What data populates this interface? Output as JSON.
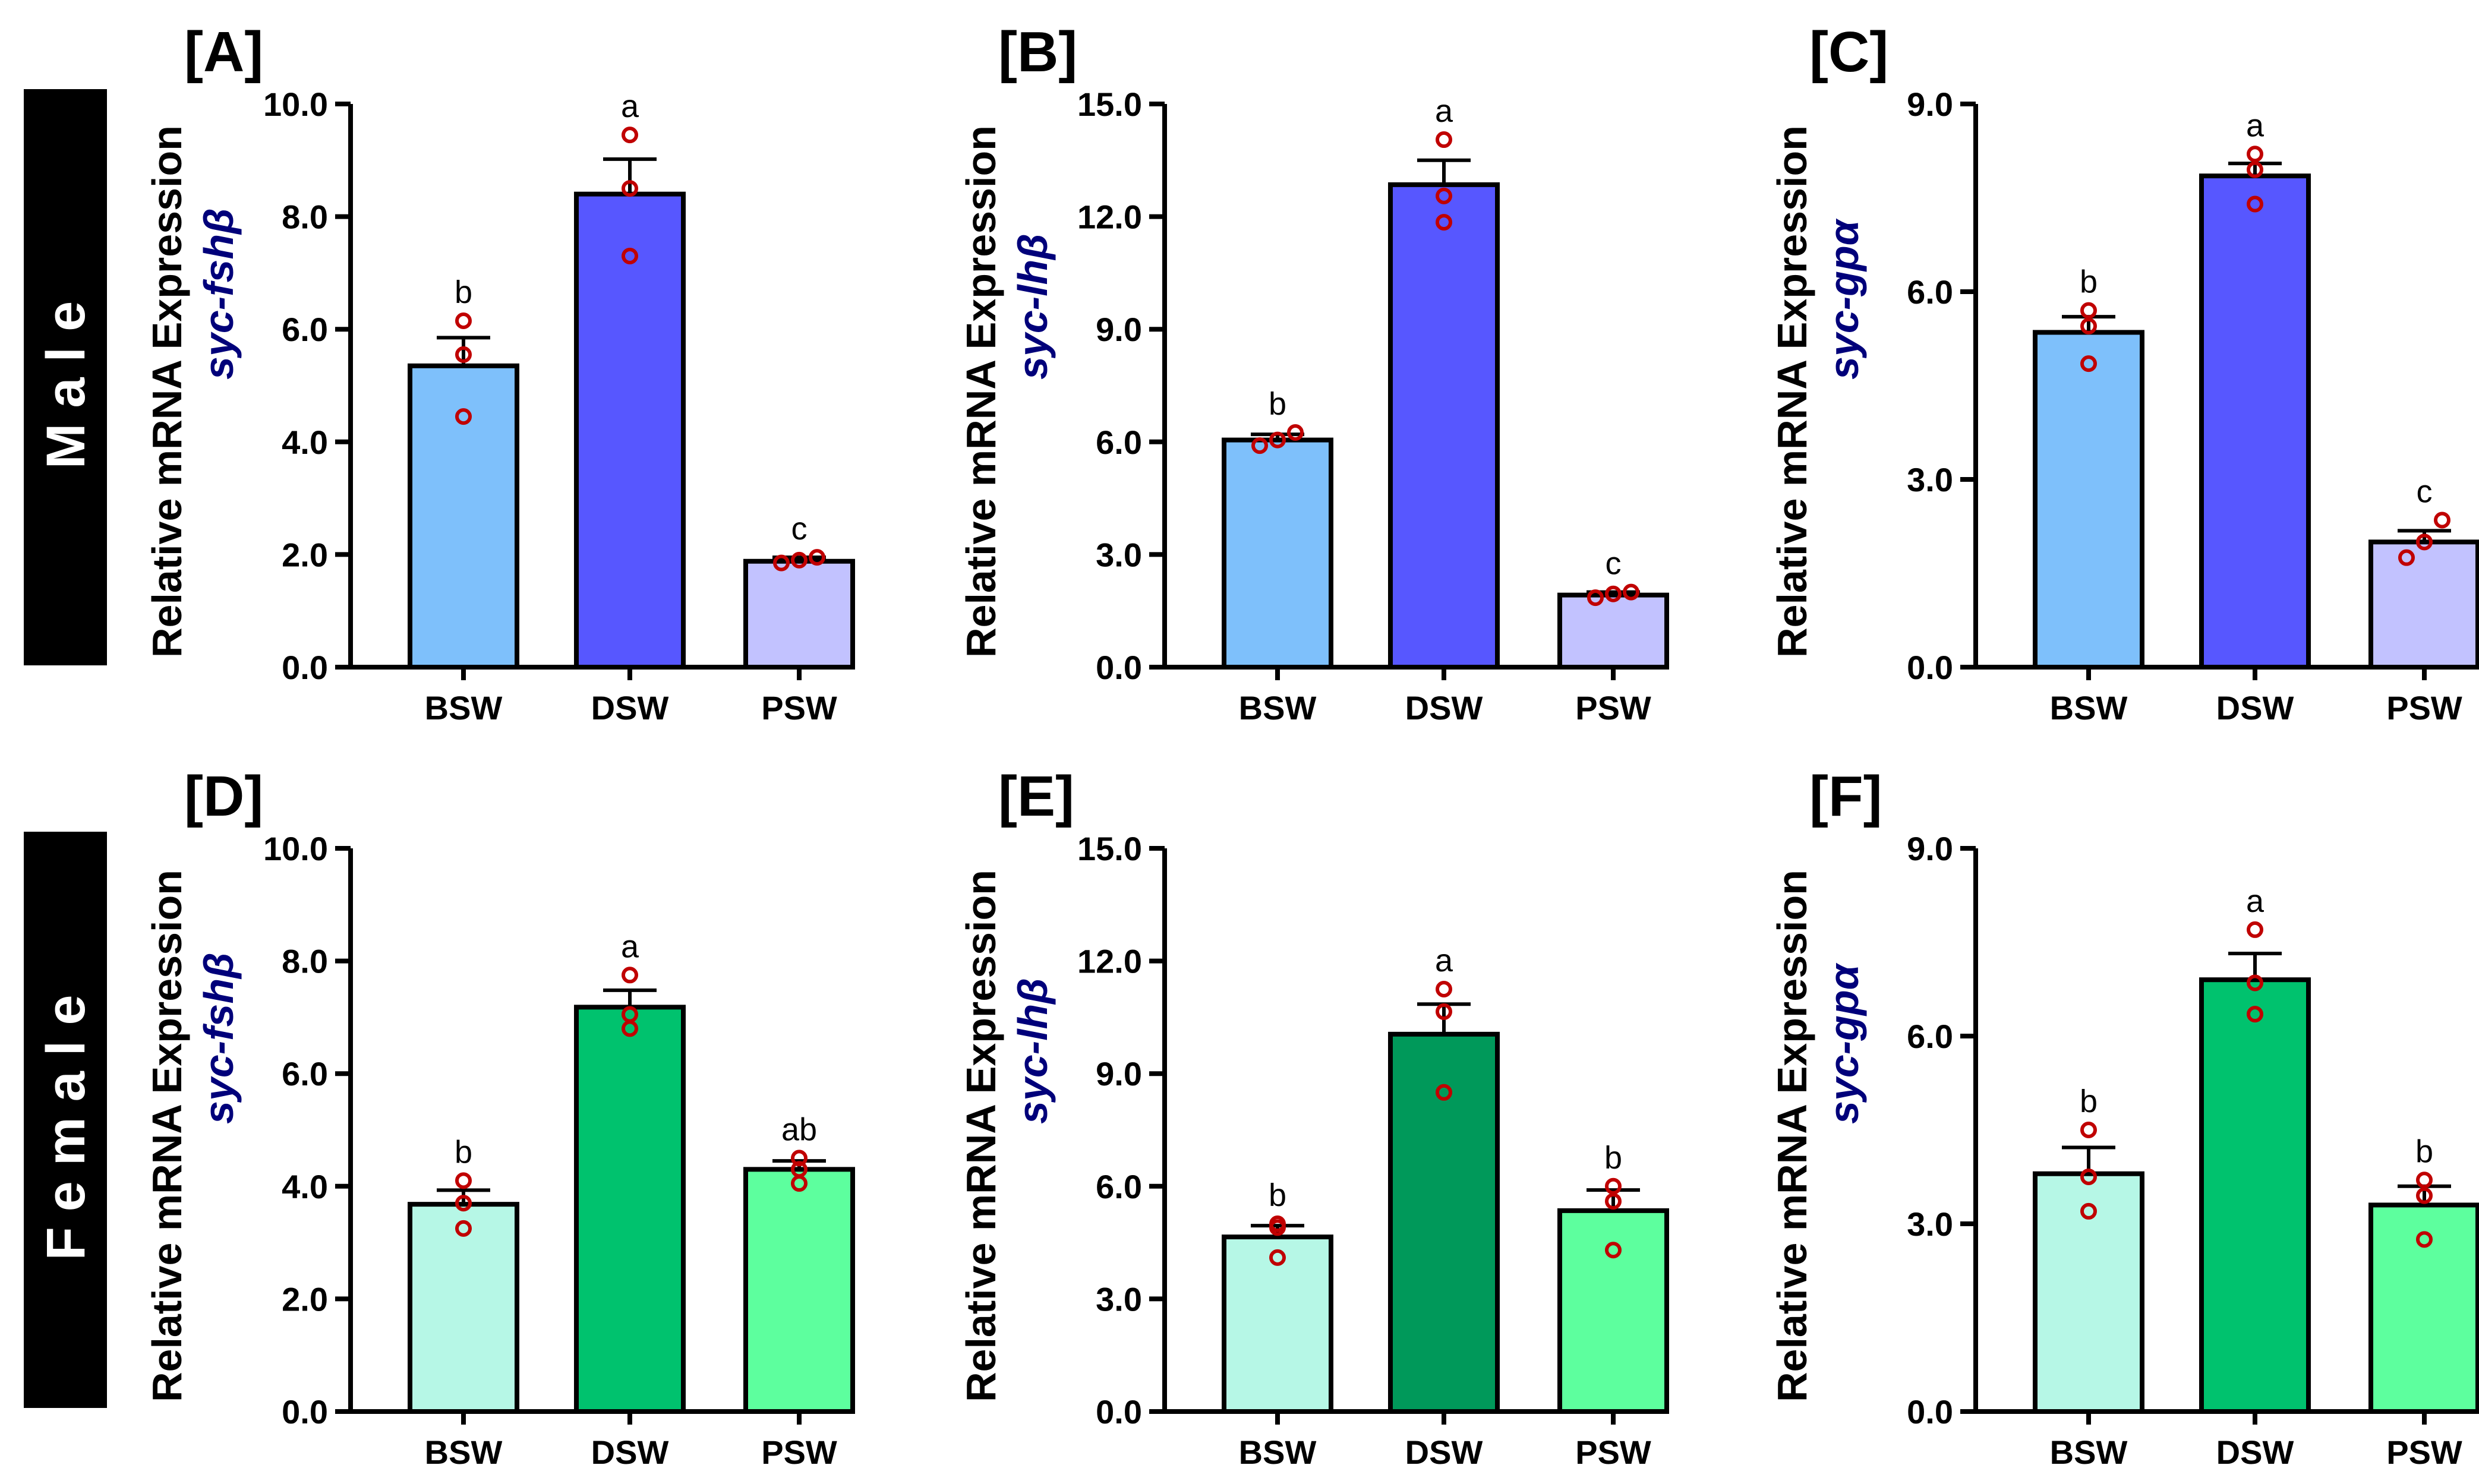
{
  "row_labels": [
    "Male",
    "Female"
  ],
  "y_axis_label": "Relative mRNA Expression",
  "colors": {
    "male_bsw": "#7ec0fb",
    "male_dsw": "#5757ff",
    "male_psw": "#c2c2ff",
    "female_bsw": "#b6f7e6",
    "female_dsw": "#00c26e",
    "female_dsw_dark": "#00995a",
    "female_psw": "#5dff9e",
    "points": "#c00000",
    "gene_label": "#00007a"
  },
  "chart_data": [
    {
      "type": "bar",
      "panel": "[A]",
      "gene": "syc-fshβ",
      "row": "Male",
      "categories": [
        "BSW",
        "DSW",
        "PSW"
      ],
      "values": [
        5.35,
        8.4,
        1.88
      ],
      "errors": [
        0.5,
        0.62,
        0.07
      ],
      "points": [
        [
          4.45,
          5.55,
          6.15
        ],
        [
          7.3,
          8.5,
          9.45
        ],
        [
          1.85,
          1.9,
          1.95
        ]
      ],
      "sig": [
        "b",
        "a",
        "c"
      ],
      "ylim": [
        0,
        10
      ],
      "yticks": [
        "0.0",
        "2.0",
        "4.0",
        "6.0",
        "8.0",
        "10.0"
      ],
      "color_keys": [
        "male_bsw",
        "male_dsw",
        "male_psw"
      ]
    },
    {
      "type": "bar",
      "panel": "[B]",
      "gene": "syc-lhβ",
      "row": "Male",
      "categories": [
        "BSW",
        "DSW",
        "PSW"
      ],
      "values": [
        6.05,
        12.85,
        1.92
      ],
      "errors": [
        0.15,
        0.65,
        0.08
      ],
      "points": [
        [
          5.9,
          6.05,
          6.25
        ],
        [
          11.85,
          12.55,
          14.05
        ],
        [
          1.85,
          1.95,
          2.0
        ]
      ],
      "sig": [
        "b",
        "a",
        "c"
      ],
      "ylim": [
        0,
        15
      ],
      "yticks": [
        "0.0",
        "3.0",
        "6.0",
        "9.0",
        "12.0",
        "15.0"
      ],
      "color_keys": [
        "male_bsw",
        "male_dsw",
        "male_psw"
      ]
    },
    {
      "type": "bar",
      "panel": "[C]",
      "gene": "syc-gpα",
      "row": "Male",
      "categories": [
        "BSW",
        "DSW",
        "PSW"
      ],
      "values": [
        5.35,
        7.85,
        2.0
      ],
      "errors": [
        0.25,
        0.2,
        0.18
      ],
      "points": [
        [
          4.85,
          5.45,
          5.7
        ],
        [
          7.4,
          7.95,
          8.2
        ],
        [
          1.75,
          2.0,
          2.35
        ]
      ],
      "sig": [
        "b",
        "a",
        "c"
      ],
      "ylim": [
        0,
        9
      ],
      "yticks": [
        "0.0",
        "3.0",
        "6.0",
        "9.0"
      ],
      "color_keys": [
        "male_bsw",
        "male_dsw",
        "male_psw"
      ]
    },
    {
      "type": "bar",
      "panel": "[D]",
      "gene": "syc-fshβ",
      "row": "Female",
      "categories": [
        "BSW",
        "DSW",
        "PSW"
      ],
      "values": [
        3.68,
        7.18,
        4.3
      ],
      "errors": [
        0.25,
        0.3,
        0.15
      ],
      "points": [
        [
          3.25,
          3.7,
          4.1
        ],
        [
          6.8,
          7.05,
          7.75
        ],
        [
          4.05,
          4.3,
          4.5
        ]
      ],
      "sig": [
        "b",
        "a",
        "ab"
      ],
      "ylim": [
        0,
        10
      ],
      "yticks": [
        "0.0",
        "2.0",
        "4.0",
        "6.0",
        "8.0",
        "10.0"
      ],
      "color_keys": [
        "female_bsw",
        "female_dsw",
        "female_psw"
      ]
    },
    {
      "type": "bar",
      "panel": "[E]",
      "gene": "syc-lhβ",
      "row": "Female",
      "categories": [
        "BSW",
        "DSW",
        "PSW"
      ],
      "values": [
        4.65,
        10.05,
        5.35
      ],
      "errors": [
        0.3,
        0.8,
        0.55
      ],
      "points": [
        [
          4.1,
          4.9,
          5.0
        ],
        [
          8.5,
          10.65,
          11.25
        ],
        [
          4.3,
          5.6,
          6.0
        ]
      ],
      "sig": [
        "b",
        "a",
        "b"
      ],
      "ylim": [
        0,
        15
      ],
      "yticks": [
        "0.0",
        "3.0",
        "6.0",
        "9.0",
        "12.0",
        "15.0"
      ],
      "color_keys": [
        "female_bsw",
        "female_dsw_dark",
        "female_psw"
      ]
    },
    {
      "type": "bar",
      "panel": "[F]",
      "gene": "syc-gpα",
      "row": "Female",
      "categories": [
        "BSW",
        "DSW",
        "PSW"
      ],
      "values": [
        3.8,
        6.9,
        3.3
      ],
      "errors": [
        0.42,
        0.42,
        0.3
      ],
      "points": [
        [
          3.2,
          3.75,
          4.5
        ],
        [
          6.35,
          6.85,
          7.7
        ],
        [
          2.75,
          3.45,
          3.7
        ]
      ],
      "sig": [
        "b",
        "a",
        "b"
      ],
      "ylim": [
        0,
        9
      ],
      "yticks": [
        "0.0",
        "3.0",
        "6.0",
        "9.0"
      ],
      "color_keys": [
        "female_bsw",
        "female_dsw",
        "female_psw"
      ]
    }
  ]
}
